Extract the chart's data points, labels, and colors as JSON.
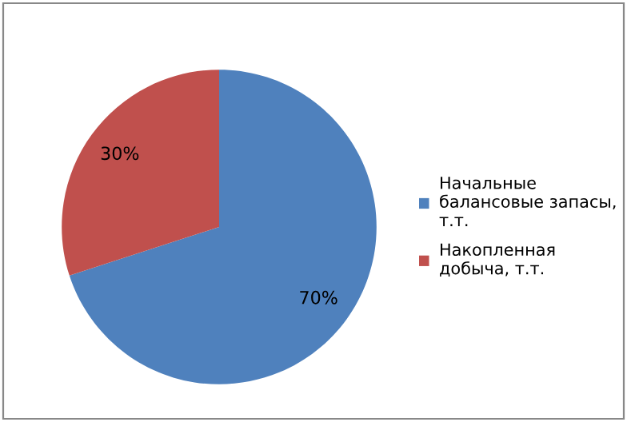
{
  "chart_data": {
    "type": "pie",
    "categories": [
      "Начальные\nбалансовые запасы,\nт.т.",
      "Накопленная\nдобыча, т.т."
    ],
    "values": [
      70,
      30
    ],
    "colors": [
      "#4f81bd",
      "#c0504d"
    ],
    "value_labels": [
      "70%",
      "30%"
    ],
    "legend": "right"
  }
}
